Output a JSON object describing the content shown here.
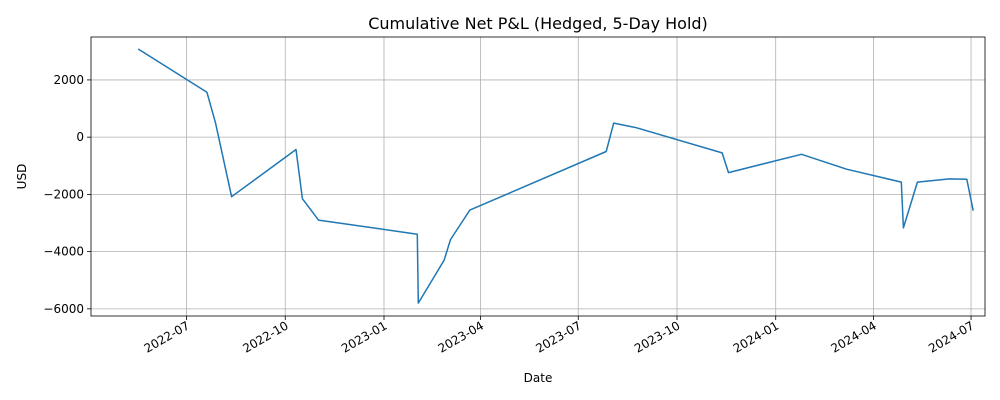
{
  "chart_data": {
    "type": "line",
    "title": "Cumulative Net P&L (Hedged, 5-Day Hold)",
    "xlabel": "Date",
    "ylabel": "USD",
    "x_tick_labels": [
      "2022-07",
      "2022-10",
      "2023-01",
      "2023-04",
      "2023-07",
      "2023-10",
      "2024-01",
      "2024-04",
      "2024-07"
    ],
    "y_tick_labels": [
      "−6000",
      "−4000",
      "−2000",
      "0",
      "2000"
    ],
    "y_ticks": [
      -6000,
      -4000,
      -2000,
      0,
      2000
    ],
    "xlim": [
      "2022-04-03",
      "2024-07-14"
    ],
    "ylim": [
      -6250,
      3500
    ],
    "grid": true,
    "series": [
      {
        "color": "#1f77b4",
        "x": [
          "2022-05-17",
          "2022-07-20",
          "2022-07-28",
          "2022-08-12",
          "2022-10-11",
          "2022-10-17",
          "2022-11-01",
          "2023-02-01",
          "2023-02-02",
          "2023-02-26",
          "2023-03-04",
          "2023-03-22",
          "2023-07-27",
          "2023-08-03",
          "2023-08-24",
          "2023-11-12",
          "2023-11-18",
          "2024-01-25",
          "2024-03-07",
          "2024-04-27",
          "2024-04-29",
          "2024-05-12",
          "2024-06-11",
          "2024-06-27",
          "2024-07-03"
        ],
        "y": [
          3080,
          1570,
          500,
          -2080,
          -430,
          -2150,
          -2900,
          -3390,
          -5800,
          -4300,
          -3580,
          -2550,
          -500,
          490,
          330,
          -550,
          -1240,
          -600,
          -1120,
          -1570,
          -3170,
          -1570,
          -1460,
          -1470,
          -2570
        ]
      }
    ]
  }
}
